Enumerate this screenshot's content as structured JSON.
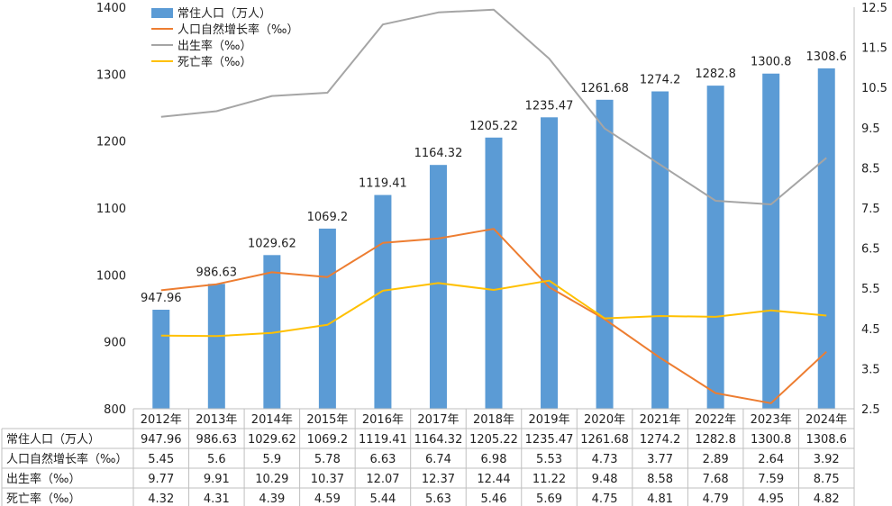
{
  "chart_data": {
    "type": "bar",
    "categories": [
      "2012年",
      "2013年",
      "2014年",
      "2015年",
      "2016年",
      "2017年",
      "2018年",
      "2019年",
      "2020年",
      "2021年",
      "2022年",
      "2023年",
      "2024年"
    ],
    "bar_series": {
      "name": "常住人口（万人）",
      "color": "#5B9BD5",
      "values": [
        947.96,
        986.63,
        1029.62,
        1069.2,
        1119.41,
        1164.32,
        1205.22,
        1235.47,
        1261.68,
        1274.2,
        1282.8,
        1300.8,
        1308.6
      ],
      "value_labels": [
        "947.96",
        "986.63",
        "1029.62",
        "1069.2",
        "1119.41",
        "1164.32",
        "1205.22",
        "1235.47",
        "1261.68",
        "1274.2",
        "1282.8",
        "1300.8",
        "1308.6"
      ]
    },
    "line_series": [
      {
        "name": "人口自然增长率（‰）",
        "color": "#ED7D31",
        "values": [
          5.45,
          5.6,
          5.9,
          5.78,
          6.63,
          6.74,
          6.98,
          5.53,
          4.73,
          3.77,
          2.89,
          2.64,
          3.92
        ]
      },
      {
        "name": "出生率（‰）",
        "color": "#A5A5A5",
        "values": [
          9.77,
          9.91,
          10.29,
          10.37,
          12.07,
          12.37,
          12.44,
          11.22,
          9.48,
          8.58,
          7.68,
          7.59,
          8.75
        ]
      },
      {
        "name": "死亡率（‰）",
        "color": "#FFC000",
        "values": [
          4.32,
          4.31,
          4.39,
          4.59,
          5.44,
          5.63,
          5.46,
          5.69,
          4.75,
          4.81,
          4.79,
          4.95,
          4.82
        ]
      }
    ],
    "y_left": {
      "min": 800,
      "max": 1400,
      "ticks": [
        "800",
        "900",
        "1000",
        "1100",
        "1200",
        "1300",
        "1400"
      ]
    },
    "y_right": {
      "min": 2.5,
      "max": 12.5,
      "ticks": [
        "2.5",
        "3.5",
        "4.5",
        "5.5",
        "6.5",
        "7.5",
        "8.5",
        "9.5",
        "10.5",
        "11.5",
        "12.5"
      ]
    },
    "legend_position": "top-left",
    "grid": false,
    "data_table": {
      "rows": [
        {
          "label": "常住人口（万人）",
          "cells": [
            "947.96",
            "986.63",
            "1029.62",
            "1069.2",
            "1119.41",
            "1164.32",
            "1205.22",
            "1235.47",
            "1261.68",
            "1274.2",
            "1282.8",
            "1300.8",
            "1308.6"
          ]
        },
        {
          "label": "人口自然增长率（‰）",
          "cells": [
            "5.45",
            "5.6",
            "5.9",
            "5.78",
            "6.63",
            "6.74",
            "6.98",
            "5.53",
            "4.73",
            "3.77",
            "2.89",
            "2.64",
            "3.92"
          ]
        },
        {
          "label": "出生率（‰）",
          "cells": [
            "9.77",
            "9.91",
            "10.29",
            "10.37",
            "12.07",
            "12.37",
            "12.44",
            "11.22",
            "9.48",
            "8.58",
            "7.68",
            "7.59",
            "8.75"
          ]
        },
        {
          "label": "死亡率（‰）",
          "cells": [
            "4.32",
            "4.31",
            "4.39",
            "4.59",
            "5.44",
            "5.63",
            "5.46",
            "5.69",
            "4.75",
            "4.81",
            "4.79",
            "4.95",
            "4.82"
          ]
        }
      ]
    }
  }
}
